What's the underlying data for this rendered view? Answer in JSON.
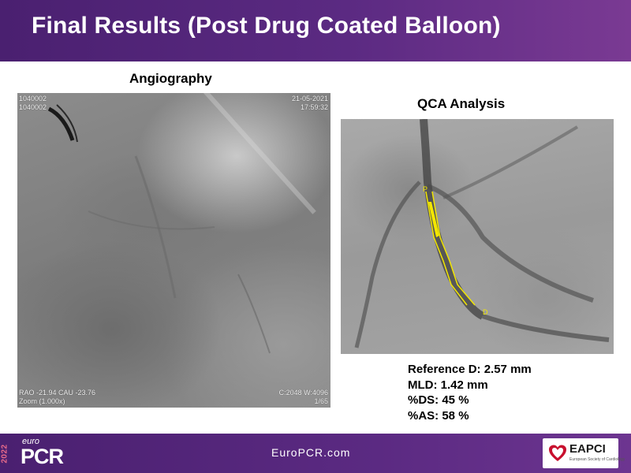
{
  "header": {
    "title": "Final Results (Post Drug Coated Balloon)"
  },
  "angiography": {
    "heading": "Angiography",
    "overlay": {
      "top_left_1": "1040002",
      "top_left_2": "1040002",
      "top_right_1": "21-05-2021",
      "top_right_2": "17:59:32",
      "bottom_left_1": "RAO -21.94  CAU -23.76",
      "bottom_left_2": "Zoom (1.000x)",
      "bottom_right_1": "C:2048 W:4096",
      "bottom_right_2": "1/65"
    }
  },
  "qca": {
    "heading": "QCA Analysis",
    "marker_proximal": "P",
    "marker_distal": "D",
    "trace_color": "#f2e600"
  },
  "results": {
    "reference_d": "Reference D: 2.57 mm",
    "mld": "MLD: 1.42 mm",
    "ds": "%DS: 45 %",
    "as": "%AS: 58 %"
  },
  "footer": {
    "logo_year": "2022",
    "logo_euro": "euro",
    "logo_pcr": "PCR",
    "url": "EuroPCR.com",
    "partner_logo": "EAPCI",
    "partner_sub": "European Society of Cardiology",
    "brand_color": "#5b2a82"
  }
}
